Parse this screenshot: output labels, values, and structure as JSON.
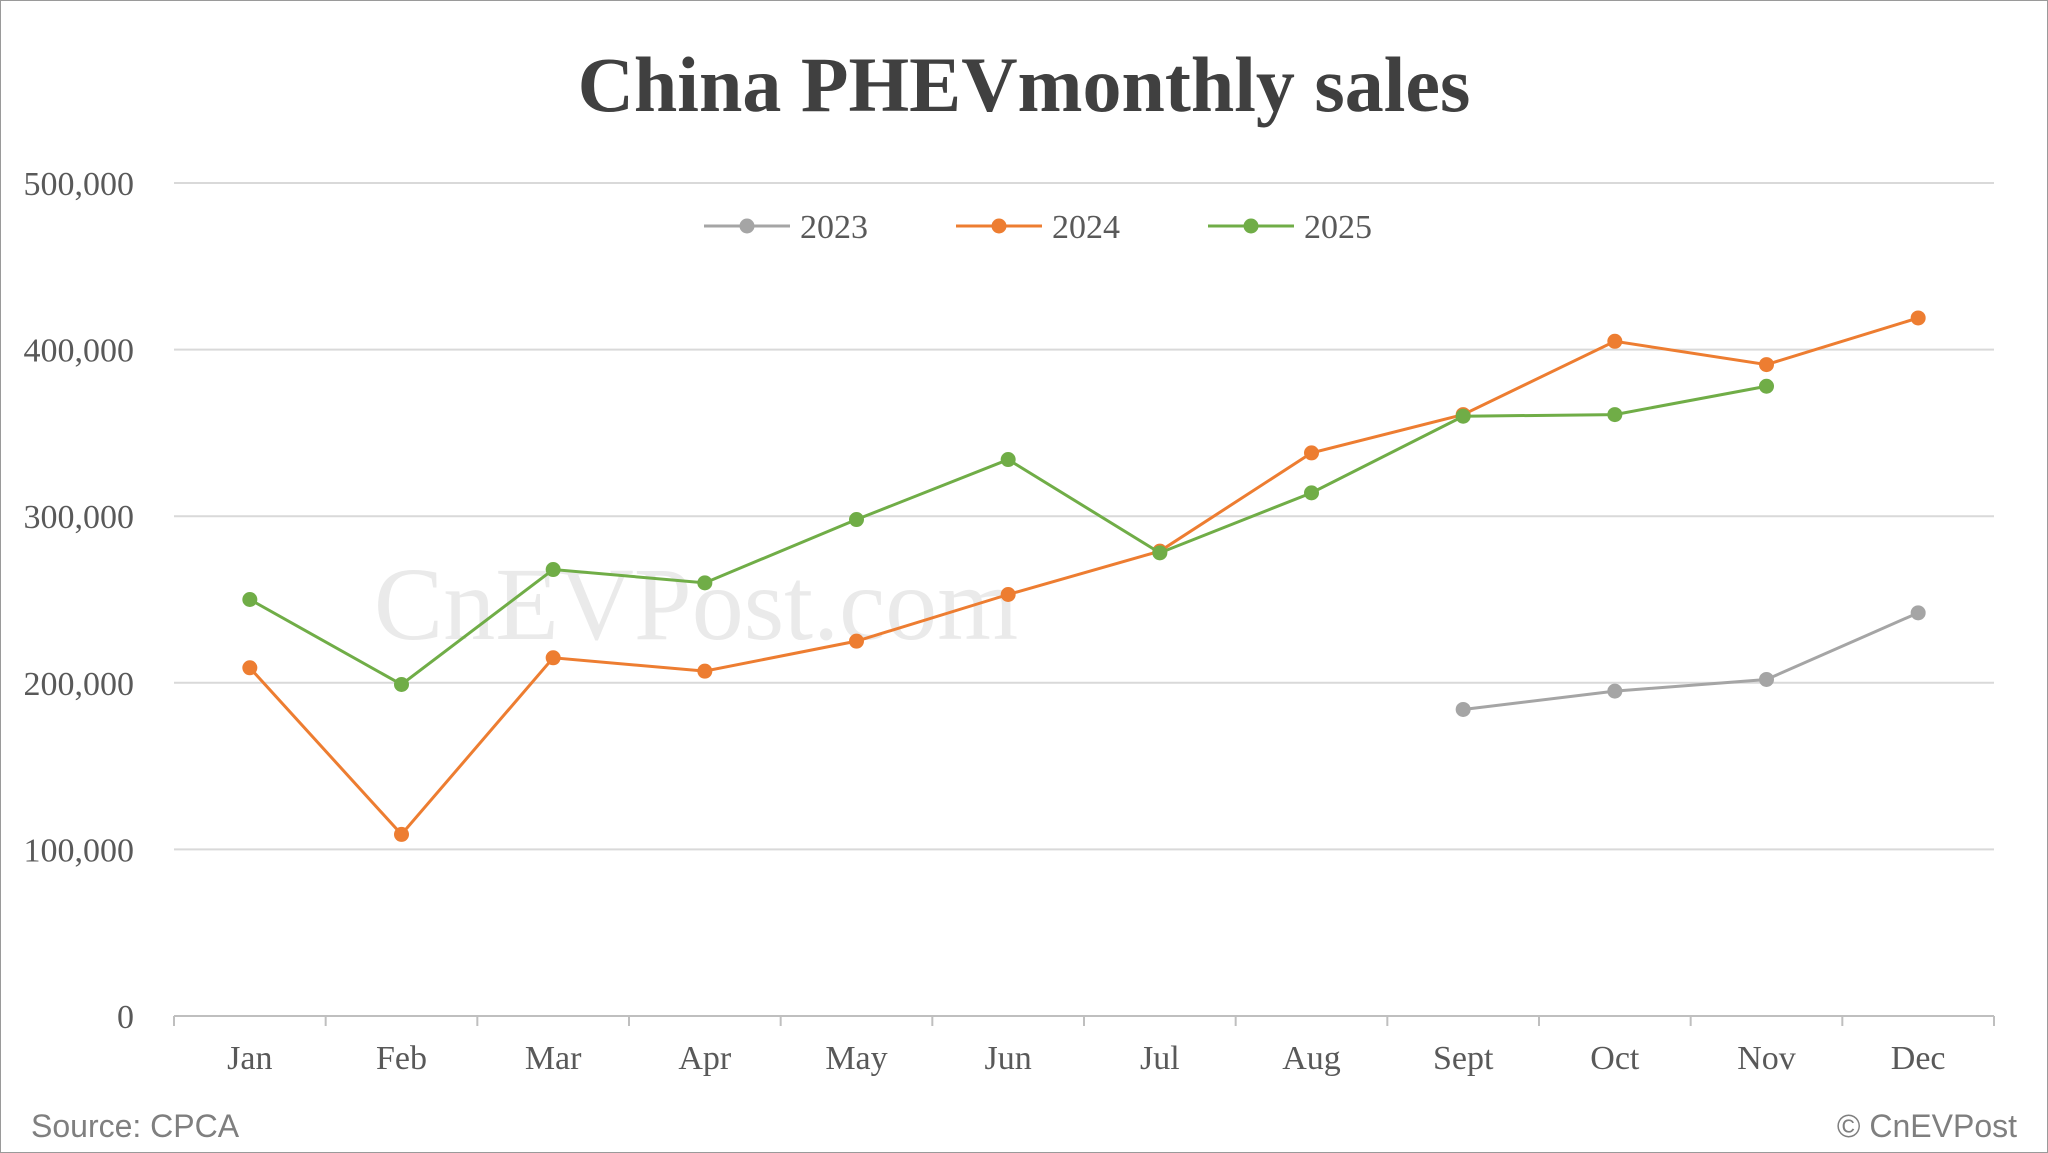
{
  "chart_data": {
    "type": "line",
    "title": "China PHEVmonthly sales",
    "xlabel": "",
    "ylabel": "",
    "categories": [
      "Jan",
      "Feb",
      "Mar",
      "Apr",
      "May",
      "Jun",
      "Jul",
      "Aug",
      "Sept",
      "Oct",
      "Nov",
      "Dec"
    ],
    "ylim": [
      0,
      500000
    ],
    "yticks": [
      0,
      100000,
      200000,
      300000,
      400000,
      500000
    ],
    "ytick_labels": [
      "0",
      "100,000",
      "200,000",
      "300,000",
      "400,000",
      "500,000"
    ],
    "grid": true,
    "legend_position": "top-center",
    "series": [
      {
        "name": "2023",
        "color": "#a5a5a5",
        "values": [
          null,
          null,
          null,
          null,
          null,
          null,
          null,
          null,
          184000,
          195000,
          202000,
          242000
        ]
      },
      {
        "name": "2024",
        "color": "#ed7d31",
        "values": [
          209000,
          109000,
          215000,
          207000,
          225000,
          253000,
          279000,
          338000,
          361000,
          405000,
          391000,
          419000
        ]
      },
      {
        "name": "2025",
        "color": "#70ad47",
        "values": [
          250000,
          199000,
          268000,
          260000,
          298000,
          334000,
          278000,
          314000,
          360000,
          361000,
          378000,
          null
        ]
      }
    ]
  },
  "watermark": "CnEVPost.com",
  "footer": {
    "source": "Source: CPCA",
    "copyright": "© CnEVPost"
  }
}
